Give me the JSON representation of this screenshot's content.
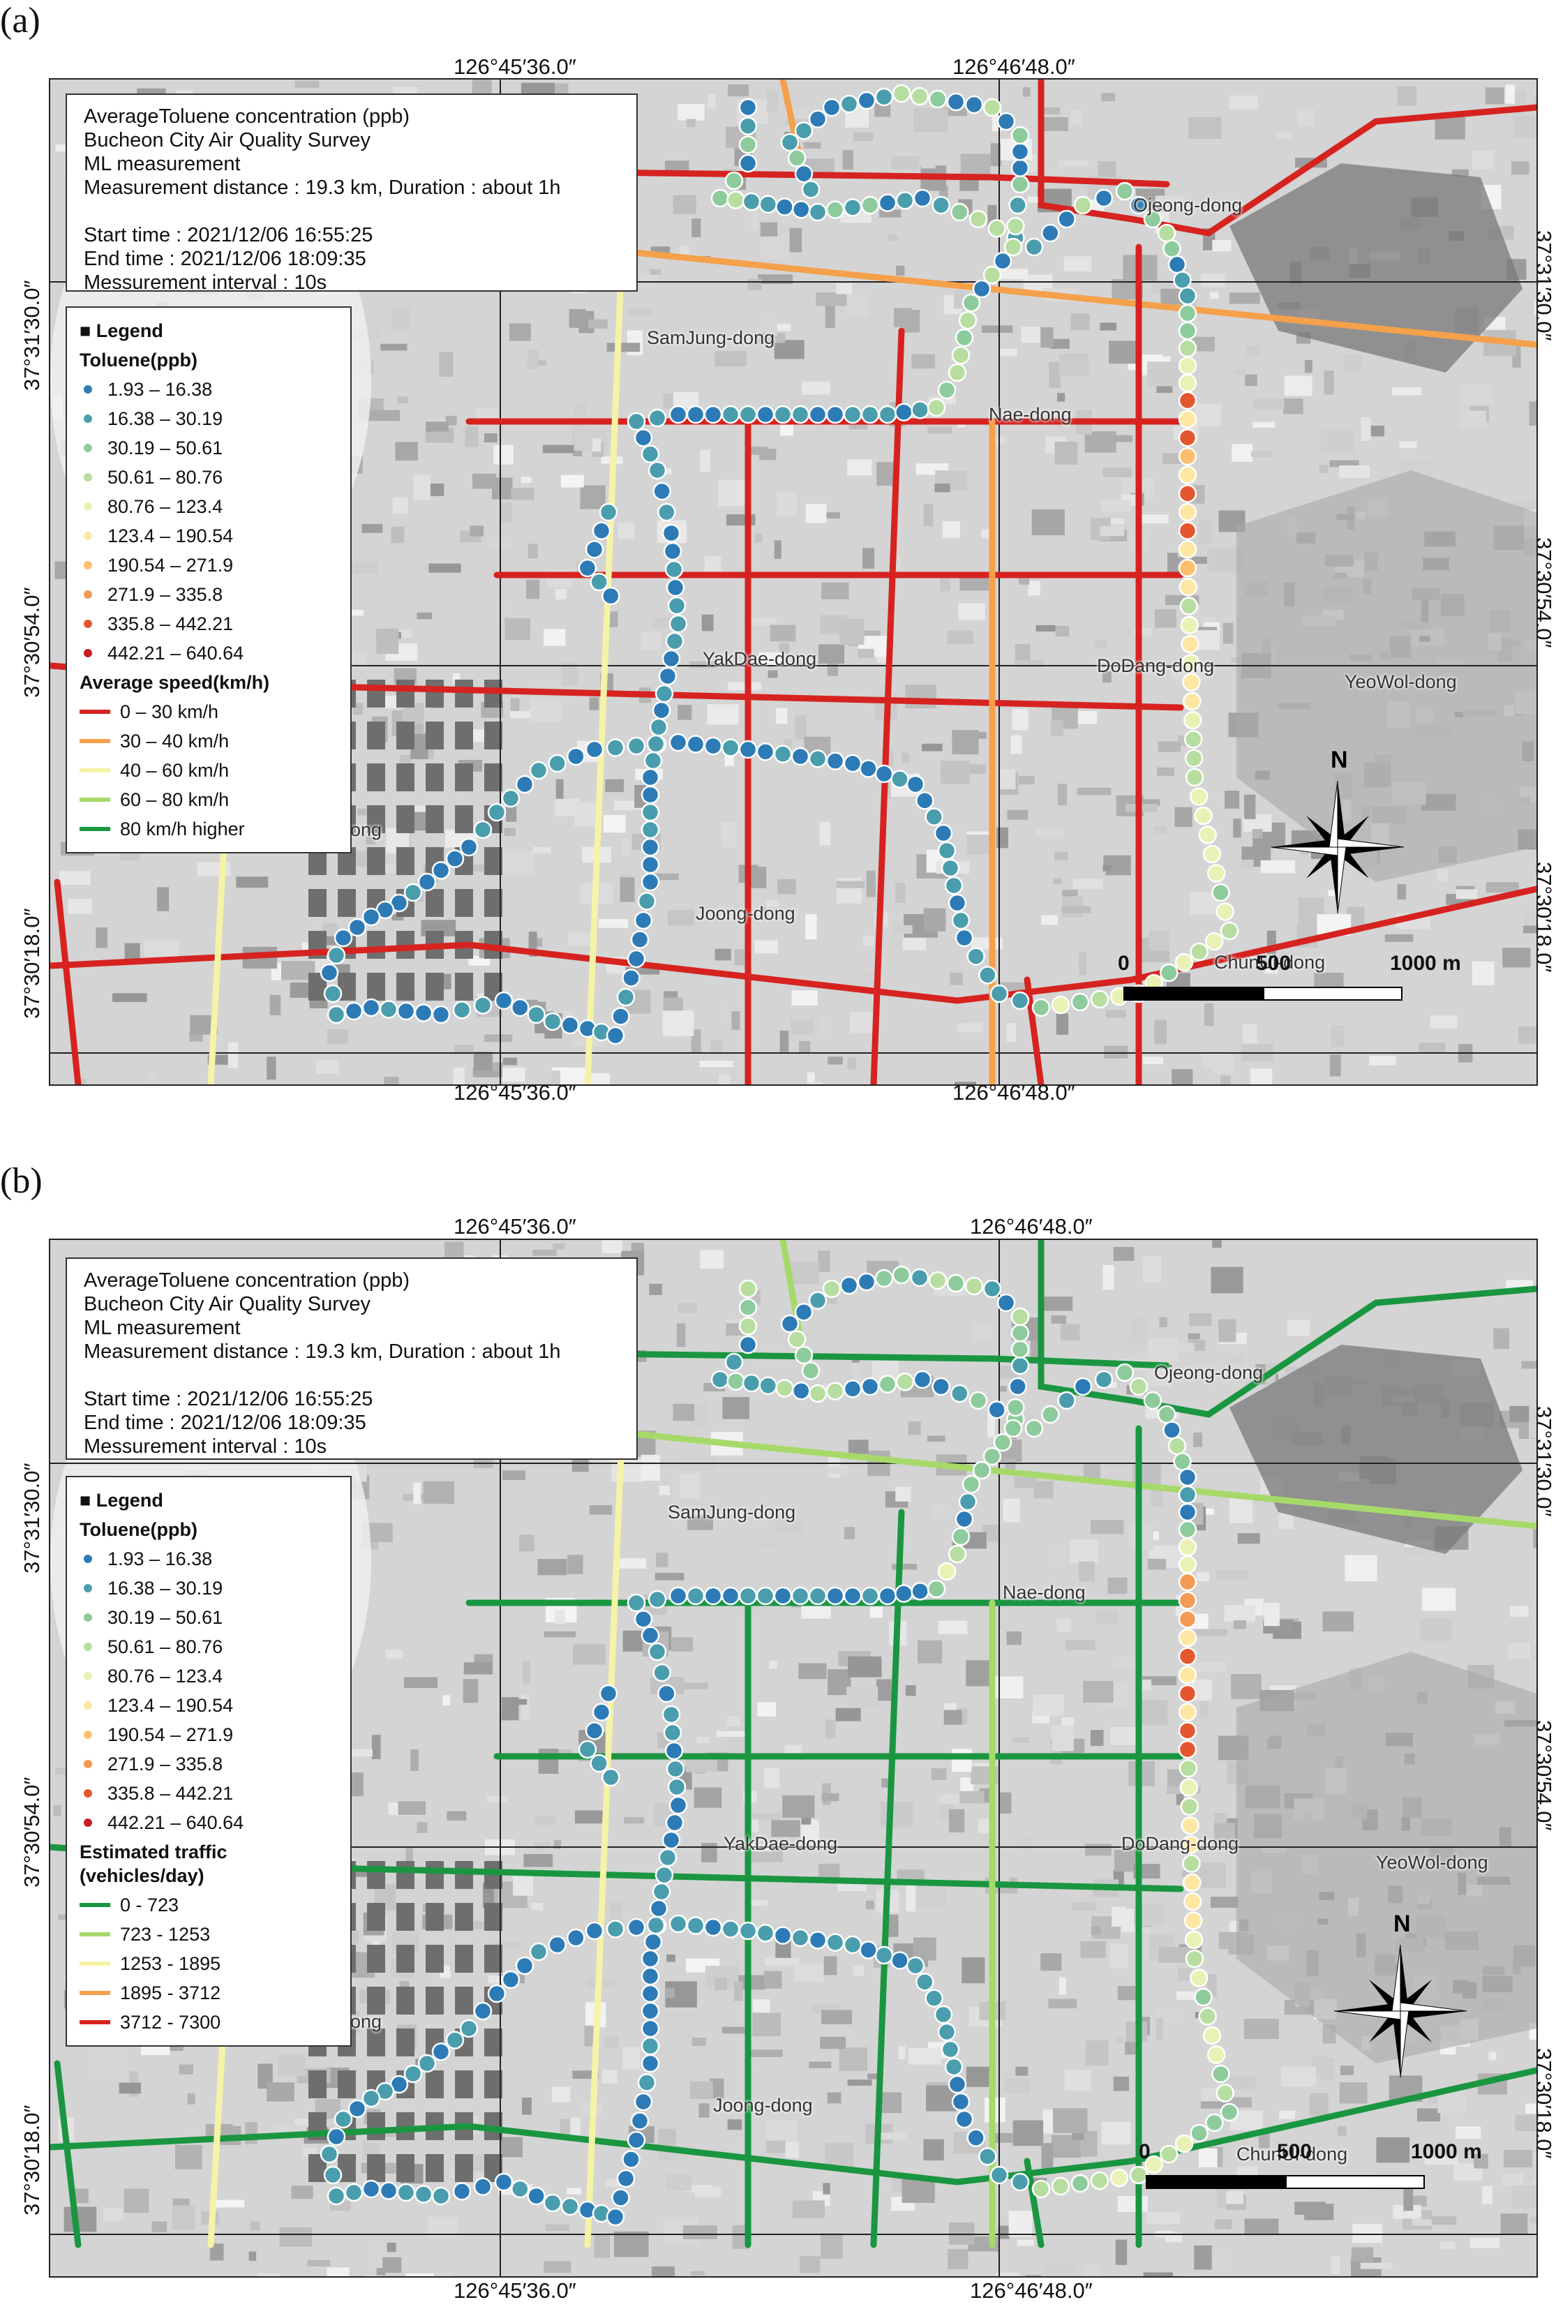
{
  "panels": [
    {
      "letter": "(a)",
      "coords": {
        "lon_left": "126°45′36.0″",
        "lon_right": "126°46′48.0″",
        "lat_top": "37°31′30.0″",
        "lat_mid": "37°30′54.0″",
        "lat_bottom": "37°30′18.0″"
      },
      "info": {
        "title": "AverageToluene concentration (ppb)",
        "survey": "Bucheon City Air Quality Survey",
        "method": "ML measurement",
        "distance": "Measurement distance : 19.3 km, Duration : about 1h",
        "start": "Start time : 2021/12/06 16:55:25",
        "end": "End time : 2021/12/06 18:09:35",
        "interval": "Messurement interval : 10s"
      },
      "legend": {
        "heading": "■ Legend",
        "toluene_title": "Toluene(ppb)",
        "road_title": "Average speed(km/h)",
        "road_title2": "",
        "road_classes": [
          {
            "label": "0 – 30 km/h",
            "color": "#d62320"
          },
          {
            "label": "30 – 40 km/h",
            "color": "#f5a04a"
          },
          {
            "label": "40 – 60 km/h",
            "color": "#f5f3a6"
          },
          {
            "label": "60 – 80 km/h",
            "color": "#a6d96a"
          },
          {
            "label": "80 km/h higher",
            "color": "#1a9641"
          }
        ]
      },
      "places": [
        "Ojeong-dong",
        "SamJung-dong",
        "Nae-dong",
        "YakDae-dong",
        "DoDang-dong",
        "YeoWol-dong",
        "Joong-dong",
        "ChunUi-dong",
        "ong"
      ],
      "scale": [
        "0",
        "500",
        "1000 m"
      ],
      "north": "N"
    },
    {
      "letter": "(b)",
      "coords": {
        "lon_left": "126°45′36.0″",
        "lon_right": "126°46′48.0″",
        "lat_top": "37°31′30.0″",
        "lat_mid": "37°30′54.0″",
        "lat_bottom": "37°30′18.0″"
      },
      "info": {
        "title": "AverageToluene concentration (ppb)",
        "survey": "Bucheon City Air Quality Survey",
        "method": "ML measurement",
        "distance": "Measurement distance : 19.3 km, Duration : about 1h",
        "start": "Start time : 2021/12/06 16:55:25",
        "end": "End time : 2021/12/06 18:09:35",
        "interval": "Messurement interval : 10s"
      },
      "legend": {
        "heading": "■ Legend",
        "toluene_title": "Toluene(ppb)",
        "road_title": "Estimated traffic",
        "road_title2": "(vehicles/day)",
        "road_classes": [
          {
            "label": "0 - 723",
            "color": "#1a9641"
          },
          {
            "label": "723 - 1253",
            "color": "#a6d96a"
          },
          {
            "label": "1253 - 1895",
            "color": "#f5f3a6"
          },
          {
            "label": "1895 - 3712",
            "color": "#f5a04a"
          },
          {
            "label": "3712 - 7300",
            "color": "#d62320"
          }
        ]
      },
      "places": [
        "Ojeong-dong",
        "SamJung-dong",
        "Nae-dong",
        "YakDae-dong",
        "DoDang-dong",
        "YeoWol-dong",
        "Joong-dong",
        "ChunUi-dong",
        "ong"
      ],
      "scale": [
        "0",
        "500",
        "1000 m"
      ],
      "north": "N"
    }
  ],
  "toluene_classes": [
    {
      "label": "1.93 – 16.38",
      "color": "#2c7bb6"
    },
    {
      "label": "16.38 – 30.19",
      "color": "#4a9dad"
    },
    {
      "label": "30.19 – 50.61",
      "color": "#8ecb9c"
    },
    {
      "label": "50.61 – 80.76",
      "color": "#b7dea0"
    },
    {
      "label": "80.76 – 123.4",
      "color": "#e9f2b4"
    },
    {
      "label": "123.4 – 190.54",
      "color": "#fde7a3"
    },
    {
      "label": "190.54 – 271.9",
      "color": "#fdbf6f"
    },
    {
      "label": "271.9 – 335.8",
      "color": "#f39a54"
    },
    {
      "label": "335.8 – 442.21",
      "color": "#e4572e"
    },
    {
      "label": "442.21 – 640.64",
      "color": "#c81d25"
    }
  ]
}
